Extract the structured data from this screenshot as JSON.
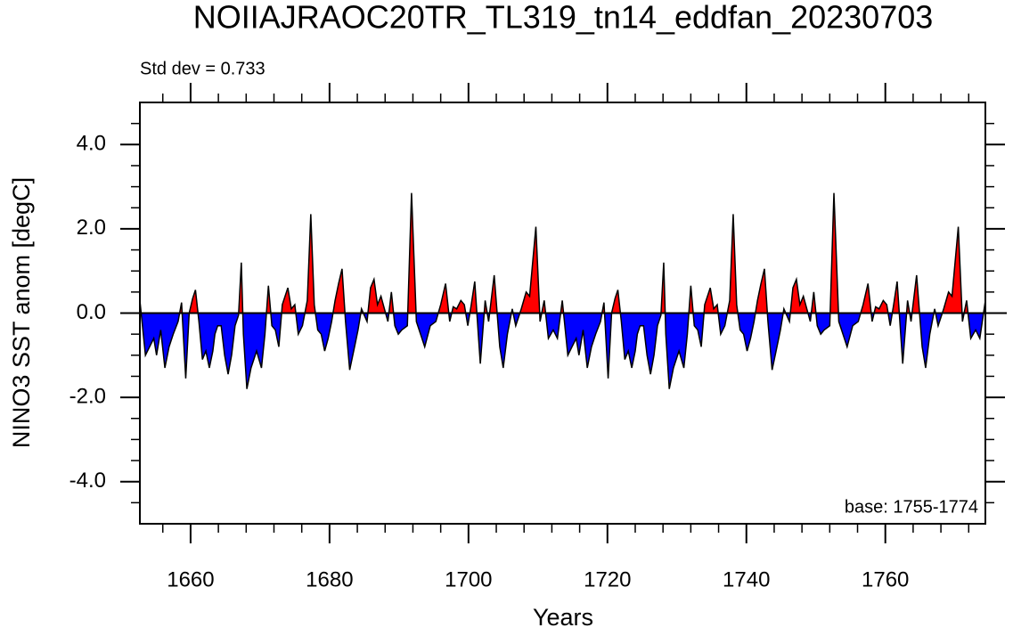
{
  "chart_data": {
    "type": "area",
    "title": "NOIIAJRAOC20TR_TL319_tn14_eddfan_20230703",
    "subtitle": "Std dev = 0.733",
    "annotation": "base: 1755-1774",
    "xlabel": "Years",
    "ylabel": "NINO3 SST anom [degC]",
    "xlim": [
      1652.7,
      1774.4
    ],
    "ylim": [
      -5,
      5
    ],
    "xticks": [
      1660,
      1680,
      1700,
      1720,
      1740,
      1760
    ],
    "xminorticks": [
      1656,
      1664,
      1668,
      1672,
      1676,
      1684,
      1688,
      1692,
      1696,
      1704,
      1708,
      1712,
      1716,
      1724,
      1728,
      1732,
      1736,
      1744,
      1748,
      1752,
      1756,
      1764,
      1768,
      1772
    ],
    "yticks": [
      {
        "value": -4,
        "label": "-4.0"
      },
      {
        "value": -2,
        "label": "-2.0"
      },
      {
        "value": 0,
        "label": "0.0"
      },
      {
        "value": 2,
        "label": "2.0"
      },
      {
        "value": 4,
        "label": "4.0"
      }
    ],
    "yminorticks": [
      -4.5,
      -3.5,
      -3,
      -2.5,
      -1.5,
      -1,
      -0.5,
      0.5,
      1,
      1.5,
      2.5,
      3,
      3.5,
      4.5
    ],
    "positive_color": "#ff0000",
    "negative_color": "#0000ff",
    "line_color": "#000000",
    "x": [
      1652.7,
      1653.5,
      1654.1,
      1654.7,
      1655.1,
      1655.7,
      1656.3,
      1656.9,
      1657.5,
      1658.2,
      1658.7,
      1659.3,
      1659.8,
      1660.3,
      1660.7,
      1661.2,
      1661.7,
      1662.2,
      1662.7,
      1663.2,
      1663.5,
      1663.9,
      1664.4,
      1664.9,
      1665.4,
      1665.9,
      1666.4,
      1666.9,
      1667.3,
      1667.6,
      1668.1,
      1668.7,
      1669.5,
      1670.2,
      1670.7,
      1671.2,
      1671.7,
      1672.2,
      1672.7,
      1673.2,
      1674.0,
      1674.5,
      1675.0,
      1675.5,
      1676.1,
      1676.8,
      1677.3,
      1677.8,
      1678.3,
      1678.8,
      1679.3,
      1679.8,
      1680.3,
      1680.8,
      1681.3,
      1681.8,
      1682.3,
      1682.9,
      1683.6,
      1684.1,
      1684.6,
      1685.4,
      1685.9,
      1686.4,
      1686.9,
      1687.4,
      1687.9,
      1688.4,
      1688.9,
      1689.4,
      1689.9,
      1690.4,
      1691.2,
      1691.8,
      1692.5,
      1693.1,
      1693.7,
      1694.5,
      1695.3,
      1696.0,
      1696.7,
      1697.3,
      1697.8,
      1698.3,
      1698.9,
      1699.4,
      1699.9,
      1700.4,
      1700.9,
      1701.7,
      1702.4,
      1702.9,
      1703.7,
      1704.5,
      1705.0,
      1705.6,
      1706.3,
      1706.8,
      1707.6,
      1708.3,
      1708.8,
      1709.7,
      1710.3,
      1710.9,
      1711.5,
      1712.2,
      1712.8,
      1713.5,
      1714.3,
      1714.9,
      1715.5,
      1715.9,
      1716.5,
      1717.1,
      1717.7,
      1718.3,
      1719.0,
      1719.5,
      1720.1,
      1720.6,
      1721.1,
      1721.5,
      1722.0,
      1722.5,
      1723.0,
      1723.5,
      1724.0,
      1724.3,
      1724.7,
      1725.2,
      1725.7,
      1726.2,
      1726.7,
      1727.2,
      1727.7,
      1728.1,
      1728.4,
      1728.9,
      1729.5,
      1730.3,
      1731.0,
      1731.5,
      1732.0,
      1732.5,
      1733.0,
      1733.5,
      1734.0,
      1734.8,
      1735.3,
      1735.8,
      1736.3,
      1736.9,
      1737.6,
      1738.1,
      1738.6,
      1739.1,
      1739.6,
      1740.1,
      1740.6,
      1741.1,
      1741.6,
      1742.1,
      1742.6,
      1743.1,
      1743.7,
      1744.4,
      1744.9,
      1745.4,
      1746.2,
      1746.7,
      1747.2,
      1747.7,
      1748.2,
      1748.7,
      1749.2,
      1749.7,
      1750.2,
      1750.7,
      1751.2,
      1752.0,
      1752.6,
      1753.3,
      1753.9,
      1754.5,
      1755.3,
      1756.1,
      1756.8,
      1757.5,
      1758.1,
      1758.6,
      1759.1,
      1759.7,
      1760.2,
      1760.7,
      1761.2,
      1761.7,
      1762.5,
      1763.2,
      1763.7,
      1764.5,
      1765.3,
      1765.8,
      1766.4,
      1767.1,
      1767.6,
      1768.4,
      1769.1,
      1769.6,
      1770.5,
      1771.1,
      1771.7,
      1772.3,
      1773.0,
      1773.6,
      1774.4
    ],
    "values": [
      0.3,
      -1.0,
      -0.8,
      -0.6,
      -1.0,
      -0.4,
      -1.3,
      -0.8,
      -0.5,
      -0.2,
      0.25,
      -1.55,
      0.0,
      0.35,
      0.55,
      -0.2,
      -1.1,
      -0.9,
      -1.3,
      -0.9,
      -0.5,
      -0.3,
      -0.3,
      -1.0,
      -1.45,
      -1.0,
      -0.3,
      -0.05,
      1.2,
      -0.5,
      -1.8,
      -1.3,
      -0.9,
      -1.3,
      -0.5,
      0.65,
      -0.3,
      -0.4,
      -0.8,
      0.2,
      0.6,
      0.1,
      0.2,
      -0.5,
      -0.3,
      0.3,
      2.35,
      0.2,
      -0.4,
      -0.5,
      -0.9,
      -0.6,
      -0.2,
      0.3,
      0.7,
      1.05,
      -0.2,
      -1.35,
      -0.8,
      -0.4,
      0.1,
      -0.2,
      0.6,
      0.8,
      0.2,
      0.4,
      0.1,
      -0.2,
      0.5,
      -0.3,
      -0.5,
      -0.4,
      -0.3,
      2.85,
      -0.2,
      -0.5,
      -0.8,
      -0.3,
      -0.2,
      0.2,
      0.7,
      -0.2,
      0.15,
      0.1,
      0.3,
      0.2,
      -0.3,
      0.2,
      0.75,
      -1.2,
      0.3,
      -0.2,
      0.9,
      -0.8,
      -1.3,
      -0.5,
      0.1,
      -0.3,
      0.1,
      0.5,
      0.4,
      2.05,
      -0.2,
      0.3,
      -0.6,
      -0.4,
      -0.6,
      0.3,
      -1.0,
      -0.8,
      -0.6,
      -1.0,
      -0.4,
      -1.3,
      -0.8,
      -0.5,
      -0.2,
      0.25,
      -1.55,
      0.0,
      0.35,
      0.55,
      -0.2,
      -1.1,
      -0.9,
      -1.3,
      -0.9,
      -0.5,
      -0.3,
      -0.3,
      -1.0,
      -1.45,
      -1.0,
      -0.3,
      -0.05,
      1.2,
      -0.5,
      -1.8,
      -1.3,
      -0.9,
      -1.3,
      -0.5,
      0.65,
      -0.3,
      -0.4,
      -0.8,
      0.2,
      0.6,
      0.1,
      0.2,
      -0.5,
      -0.3,
      0.3,
      2.35,
      0.2,
      -0.4,
      -0.5,
      -0.9,
      -0.6,
      -0.2,
      0.3,
      0.7,
      1.05,
      -0.2,
      -1.35,
      -0.8,
      -0.4,
      0.1,
      -0.2,
      0.6,
      0.8,
      0.2,
      0.4,
      0.1,
      -0.2,
      0.5,
      -0.3,
      -0.5,
      -0.4,
      -0.3,
      2.85,
      -0.2,
      -0.5,
      -0.8,
      -0.3,
      -0.2,
      0.2,
      0.7,
      -0.2,
      0.15,
      0.1,
      0.3,
      0.2,
      -0.3,
      0.2,
      0.75,
      -1.2,
      0.3,
      -0.2,
      0.9,
      -0.8,
      -1.3,
      -0.5,
      0.1,
      -0.3,
      0.1,
      0.5,
      0.4,
      2.05,
      -0.2,
      0.3,
      -0.6,
      -0.4,
      -0.6,
      0.3
    ]
  }
}
